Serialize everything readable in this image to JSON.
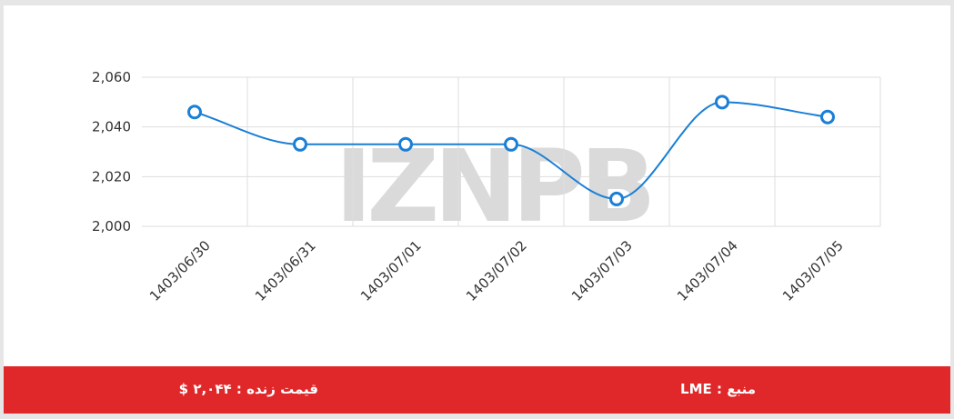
{
  "chart_data": {
    "type": "line",
    "categories": [
      "1403/06/30",
      "1403/06/31",
      "1403/07/01",
      "1403/07/02",
      "1403/07/03",
      "1403/07/04",
      "1403/07/05"
    ],
    "series": [
      {
        "color": "#1a7fd6",
        "values": [
          2046,
          2033,
          2033,
          2033,
          2011,
          2050,
          2044
        ]
      }
    ],
    "ylim": [
      2000,
      2060
    ],
    "yticks": [
      {
        "value": 2000,
        "label": "2,000"
      },
      {
        "value": 2020,
        "label": "2,020"
      },
      {
        "value": 2040,
        "label": "2,040"
      },
      {
        "value": 2060,
        "label": "2,060"
      }
    ],
    "grid": true,
    "watermark": "IZNPB"
  },
  "footer": {
    "price": "قیمت زنده : ۲,۰۴۴ $",
    "source": "منبع : LME"
  }
}
